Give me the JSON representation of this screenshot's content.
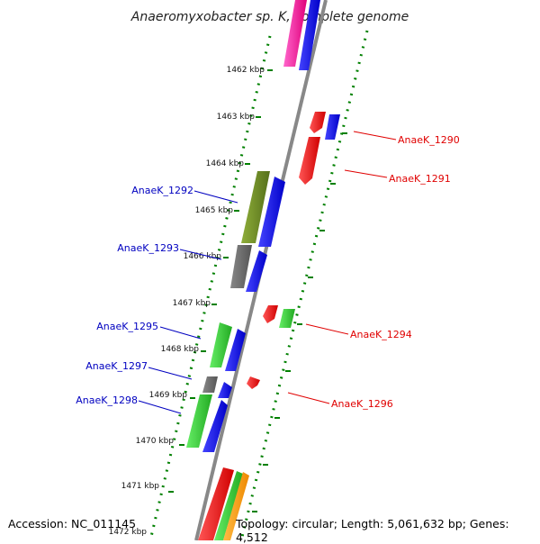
{
  "title": "Anaeromyxobacter sp. K, complete genome",
  "footer": {
    "accession": "Accession: NC_011145",
    "topology": "Topology: circular; Length: 5,061,632 bp; Genes: 4,512"
  },
  "scale_labels": [
    "1462 kbp",
    "1463 kbp",
    "1464 kbp",
    "1465 kbp",
    "1466 kbp",
    "1467 kbp",
    "1468 kbp",
    "1469 kbp",
    "1470 kbp",
    "1471 kbp",
    "1472 kbp"
  ],
  "gene_labels": [
    {
      "id": "AnaeK_1290",
      "color": "#e00000"
    },
    {
      "id": "AnaeK_1291",
      "color": "#e00000"
    },
    {
      "id": "AnaeK_1292",
      "color": "#0000c0"
    },
    {
      "id": "AnaeK_1293",
      "color": "#0000c0"
    },
    {
      "id": "AnaeK_1294",
      "color": "#e00000"
    },
    {
      "id": "AnaeK_1295",
      "color": "#0000c0"
    },
    {
      "id": "AnaeK_1296",
      "color": "#e00000"
    },
    {
      "id": "AnaeK_1297",
      "color": "#0000c0"
    },
    {
      "id": "AnaeK_1298",
      "color": "#0000c0"
    }
  ],
  "colors": {
    "backbone": "#888888",
    "ticks": "#008000",
    "magenta": "#ff33aa",
    "blue": "#0000ff",
    "red": "#ff0000",
    "olive": "#6b8e23",
    "gray": "#666666",
    "green": "#33cc33",
    "orange": "#ff9900"
  }
}
